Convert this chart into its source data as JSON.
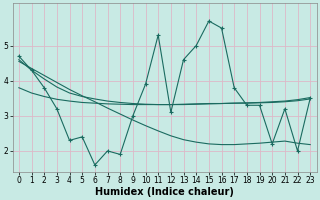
{
  "xlabel": "Humidex (Indice chaleur)",
  "bg_color": "#c8eae4",
  "grid_color": "#ddb8c8",
  "line_color": "#1a6b60",
  "x": [
    0,
    1,
    2,
    3,
    4,
    5,
    6,
    7,
    8,
    9,
    10,
    11,
    12,
    13,
    14,
    15,
    16,
    17,
    18,
    19,
    20,
    21,
    22,
    23
  ],
  "y_main": [
    4.7,
    4.3,
    3.8,
    3.2,
    2.3,
    2.4,
    1.6,
    2.0,
    1.9,
    3.0,
    3.9,
    5.3,
    3.1,
    4.6,
    5.0,
    5.7,
    5.5,
    3.8,
    3.3,
    3.3,
    2.2,
    3.2,
    2.0,
    3.5
  ],
  "y_line1": [
    4.6,
    4.3,
    4.05,
    3.82,
    3.65,
    3.55,
    3.48,
    3.42,
    3.38,
    3.35,
    3.33,
    3.32,
    3.32,
    3.32,
    3.33,
    3.34,
    3.35,
    3.36,
    3.37,
    3.38,
    3.4,
    3.42,
    3.46,
    3.52
  ],
  "y_line2": [
    3.8,
    3.65,
    3.55,
    3.47,
    3.42,
    3.38,
    3.36,
    3.34,
    3.33,
    3.32,
    3.32,
    3.32,
    3.32,
    3.33,
    3.34,
    3.35,
    3.35,
    3.36,
    3.36,
    3.37,
    3.38,
    3.4,
    3.43,
    3.48
  ],
  "y_line3": [
    4.55,
    4.35,
    4.15,
    3.95,
    3.75,
    3.57,
    3.4,
    3.22,
    3.05,
    2.88,
    2.72,
    2.57,
    2.43,
    2.32,
    2.25,
    2.2,
    2.18,
    2.18,
    2.2,
    2.22,
    2.25,
    2.28,
    2.22,
    2.18
  ],
  "ylim": [
    1.4,
    6.2
  ],
  "xlim": [
    -0.5,
    23.5
  ],
  "yticks": [
    2,
    3,
    4,
    5
  ],
  "xticks": [
    0,
    1,
    2,
    3,
    4,
    5,
    6,
    7,
    8,
    9,
    10,
    11,
    12,
    13,
    14,
    15,
    16,
    17,
    18,
    19,
    20,
    21,
    22,
    23
  ],
  "fontsize_label": 7,
  "fontsize_tick": 5.5
}
